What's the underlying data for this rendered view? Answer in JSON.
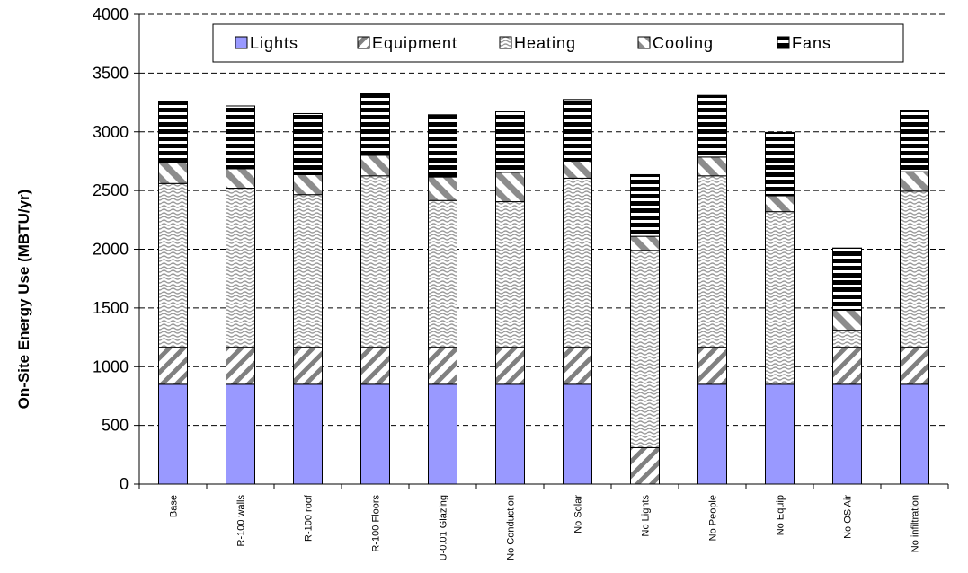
{
  "chart_data": {
    "type": "bar",
    "stacked": true,
    "title": "",
    "xlabel": "",
    "ylabel": "On-Site Energy Use (MBTU/yr)",
    "ylim": [
      0,
      4000
    ],
    "yticks": [
      0,
      500,
      1000,
      1500,
      2000,
      2500,
      3000,
      3500,
      4000
    ],
    "grid": "horizontal dashed",
    "legend_placement": "top",
    "categories": [
      "Base",
      "R-100 walls",
      "R-100 roof",
      "R-100 Floors",
      "U-0.01 Glazing",
      "No Conduction",
      "No Solar",
      "No Lights",
      "No People",
      "No Equip",
      "No OS Air",
      "No infiltration"
    ],
    "series": [
      {
        "name": "Lights",
        "color": "#9999ff",
        "pattern": "solid",
        "values": [
          850,
          850,
          850,
          850,
          850,
          850,
          850,
          0,
          850,
          850,
          850,
          850
        ]
      },
      {
        "name": "Equipment",
        "color": "#808080",
        "pattern": "diagonal",
        "values": [
          315,
          315,
          315,
          315,
          315,
          315,
          315,
          310,
          315,
          0,
          315,
          315
        ]
      },
      {
        "name": "Heating",
        "color": "#a0a0a0",
        "pattern": "wave",
        "values": [
          1395,
          1355,
          1300,
          1460,
          1250,
          1240,
          1440,
          1680,
          1460,
          1470,
          145,
          1330
        ]
      },
      {
        "name": "Cooling",
        "color": "#a0a0a0",
        "pattern": "wide-diagonal",
        "values": [
          175,
          165,
          170,
          175,
          200,
          250,
          145,
          120,
          160,
          135,
          170,
          165
        ]
      },
      {
        "name": "Fans",
        "color": "#000000",
        "pattern": "horizontal",
        "values": [
          520,
          535,
          520,
          525,
          530,
          515,
          525,
          525,
          525,
          540,
          530,
          520
        ]
      }
    ]
  }
}
